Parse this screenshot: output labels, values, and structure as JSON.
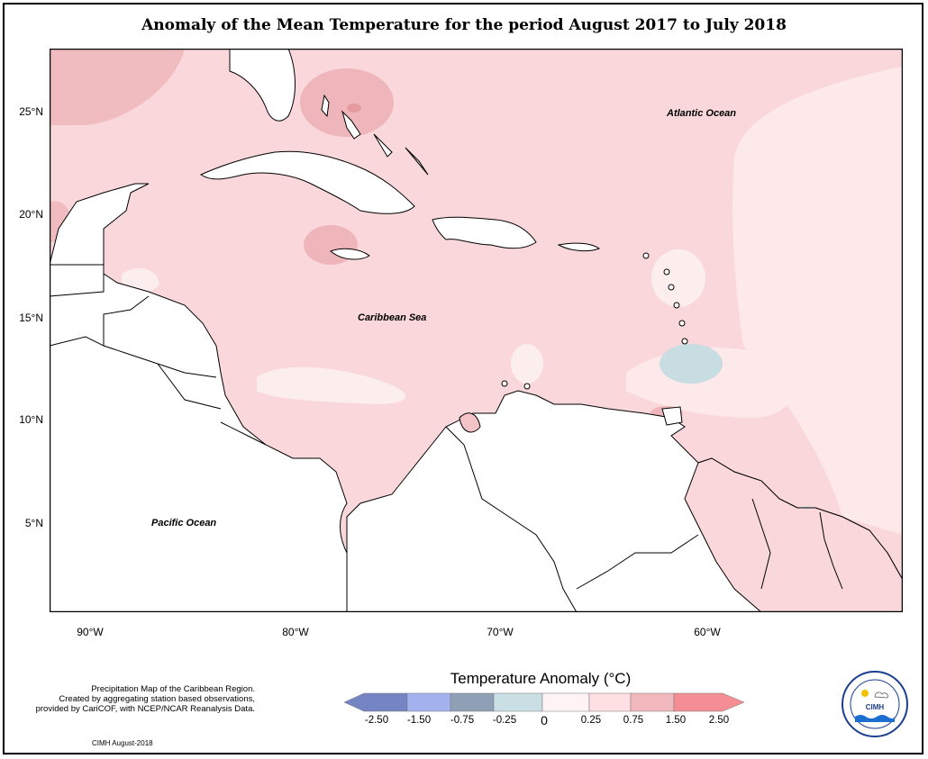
{
  "title": "Anomaly of the Mean Temperature for the period August 2017 to July 2018",
  "map": {
    "regions": [
      "Atlantic Ocean",
      "Caribbean Sea",
      "Pacific Ocean"
    ],
    "lat_labels": [
      "25°N",
      "20°N",
      "15°N",
      "10°N",
      "5°N"
    ],
    "lon_labels": [
      "90°W",
      "80°W",
      "70°W",
      "60°W"
    ],
    "colors": {
      "ocean_light": "#fde0e2",
      "ocean_mid": "#f8cfd3",
      "anom_high": "#e9a3a7",
      "anom_low": "#c3dde3",
      "near_zero": "#fff2f2",
      "land": "#ffffff",
      "coast": "#000000"
    }
  },
  "legend": {
    "title": "Temperature Anomaly (°C)",
    "tick_labels": [
      "-2.50",
      "-1.50",
      "-0.75",
      "-0.25",
      "0",
      "0.25",
      "0.75",
      "1.50",
      "2.50"
    ],
    "bin_colors": [
      "#7584c3",
      "#a4b2ef",
      "#8fa0b6",
      "#c9dfe4",
      "#fff3f3",
      "#ffdfe1",
      "#f1b8bd",
      "#f58e94"
    ]
  },
  "footnote": {
    "lines": [
      "Precipitation Map of the Caribbean Region.",
      "Created by aggregating station based observations,",
      "provided by CariCOF, with NCEP/NCAR Reanalysis Data."
    ],
    "credit": "CIMH August-2018"
  },
  "logo": {
    "name": "CIMH",
    "icon": "cimh-seal"
  }
}
